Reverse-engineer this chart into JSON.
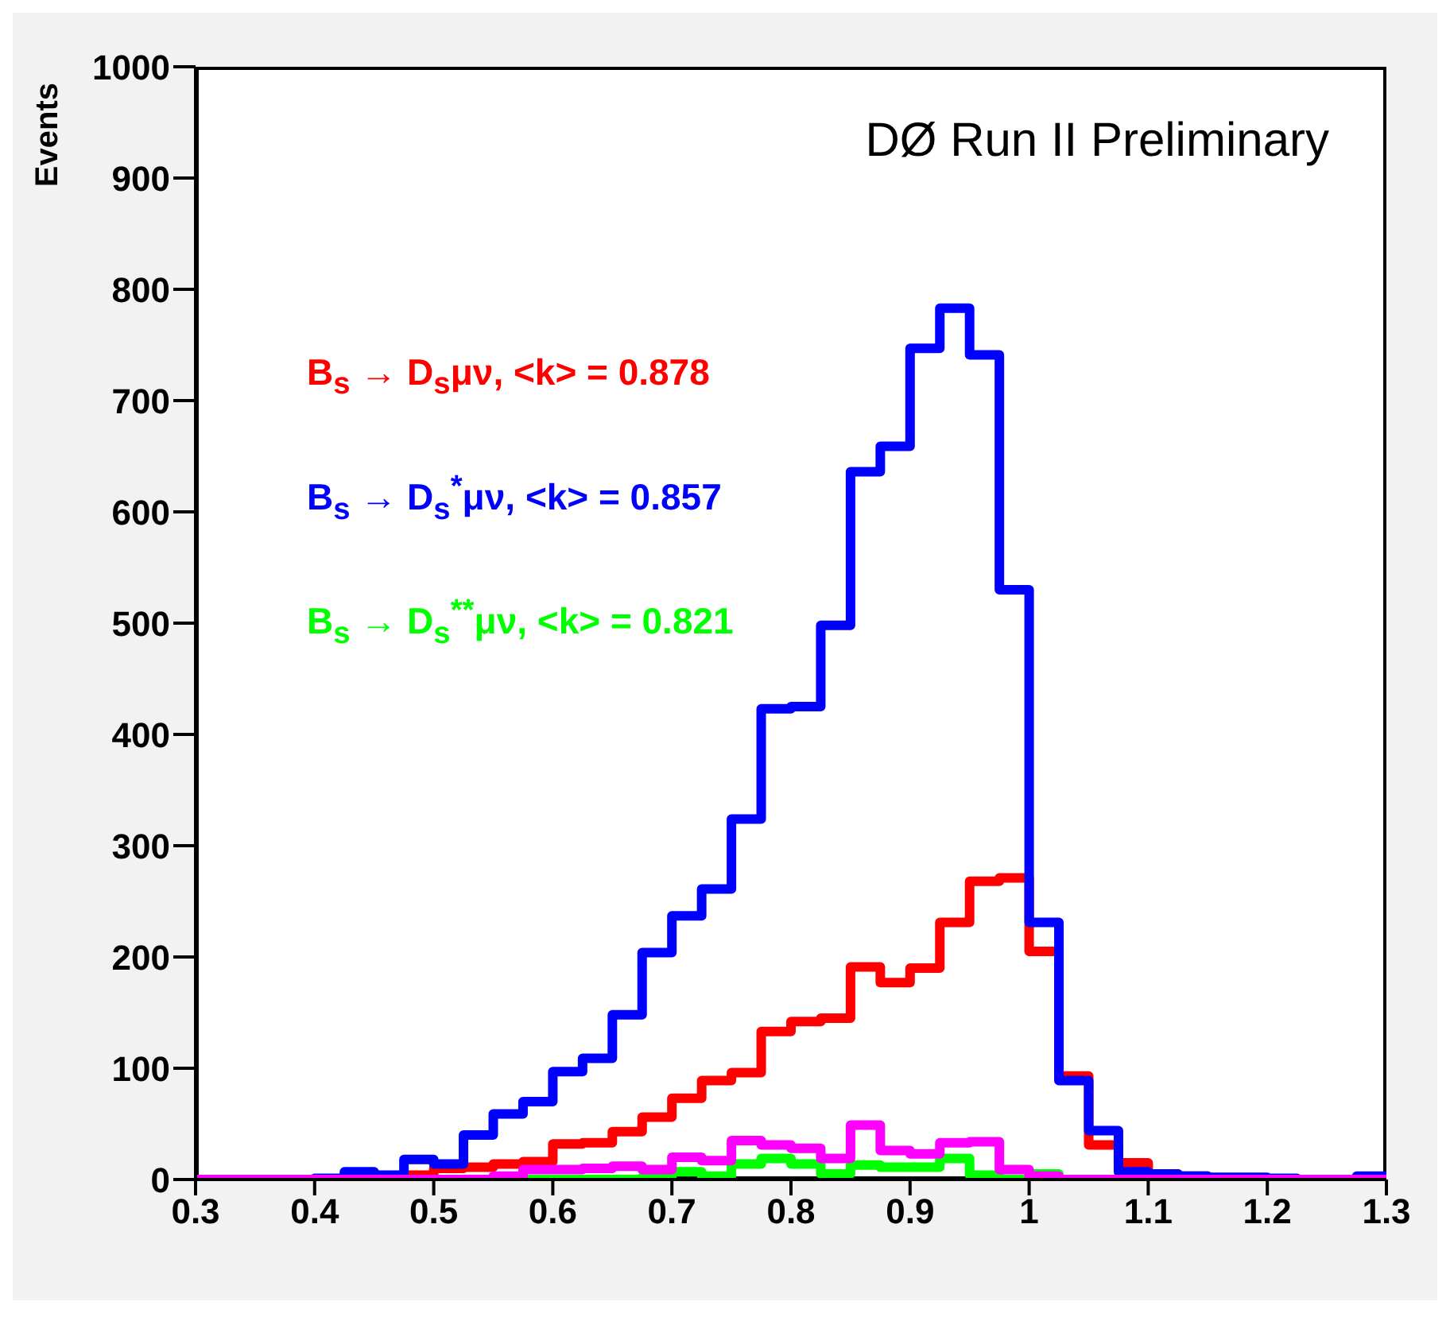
{
  "chart_data": {
    "type": "histogram",
    "title": "DØ Run II Preliminary",
    "ylabel": "Events",
    "bins": [
      0.3,
      0.325,
      0.35,
      0.375,
      0.4,
      0.425,
      0.45,
      0.475,
      0.5,
      0.525,
      0.55,
      0.575,
      0.6,
      0.625,
      0.65,
      0.675,
      0.7,
      0.725,
      0.75,
      0.775,
      0.8,
      0.825,
      0.85,
      0.875,
      0.9,
      0.925,
      0.95,
      0.975,
      1.0,
      1.025,
      1.05,
      1.075,
      1.1,
      1.125,
      1.15,
      1.175,
      1.2,
      1.225,
      1.25,
      1.275,
      1.3
    ],
    "series": [
      {
        "name": "B$_{s}$ → D$_{s}$μν, <k> = 0.878",
        "color": "#ff0000",
        "values": [
          0,
          0,
          0,
          0,
          0,
          2,
          1,
          4,
          10,
          11,
          14,
          16,
          32,
          33,
          43,
          56,
          73,
          89,
          96,
          133,
          142,
          145,
          191,
          177,
          190,
          231,
          268,
          271,
          205,
          93,
          31,
          15,
          5,
          3,
          1,
          0,
          0,
          0,
          0,
          0
        ]
      },
      {
        "name": "B$_{s}$ → D$_{s}$$^{*}$μν, <k> = 0.857",
        "color": "#0000ff",
        "values": [
          0,
          0,
          0,
          0,
          1,
          7,
          4,
          18,
          14,
          40,
          59,
          70,
          97,
          109,
          148,
          204,
          237,
          261,
          324,
          423,
          425,
          498,
          636,
          659,
          747,
          783,
          741,
          530,
          231,
          89,
          44,
          7,
          5,
          3,
          2,
          2,
          1,
          0,
          0,
          3
        ]
      },
      {
        "name": "B$_{s}$ → D$_{s}$$^{**}$μν, <k> = 0.821",
        "color": "#00ff00",
        "values": [
          0,
          0,
          0,
          0,
          0,
          0,
          0,
          0,
          0,
          0,
          0,
          0,
          0,
          0,
          0,
          2,
          7,
          3,
          14,
          19,
          14,
          5,
          13,
          11,
          11,
          19,
          4,
          0,
          5,
          0,
          0,
          0,
          0,
          0,
          0,
          0,
          0,
          0,
          0,
          0
        ]
      },
      {
        "color": "#ff00ff",
        "values": [
          0,
          0,
          0,
          0,
          0,
          0,
          0,
          0,
          0,
          0,
          3,
          9,
          9,
          10,
          12,
          9,
          20,
          17,
          35,
          31,
          28,
          19,
          49,
          26,
          23,
          33,
          34,
          9,
          3,
          0,
          0,
          0,
          0,
          0,
          0,
          0,
          0,
          0,
          0,
          0
        ]
      }
    ],
    "xlim": [
      0.3,
      1.3
    ],
    "xticks": [
      0.3,
      0.4,
      0.5,
      0.6,
      0.7,
      0.8,
      0.9,
      1,
      1.1,
      1.2,
      1.3
    ],
    "ylim": [
      0,
      1000
    ],
    "yticks": [
      0,
      100,
      200,
      300,
      400,
      500,
      600,
      700,
      800,
      900,
      1000
    ],
    "legend": "top left",
    "grid": false
  }
}
